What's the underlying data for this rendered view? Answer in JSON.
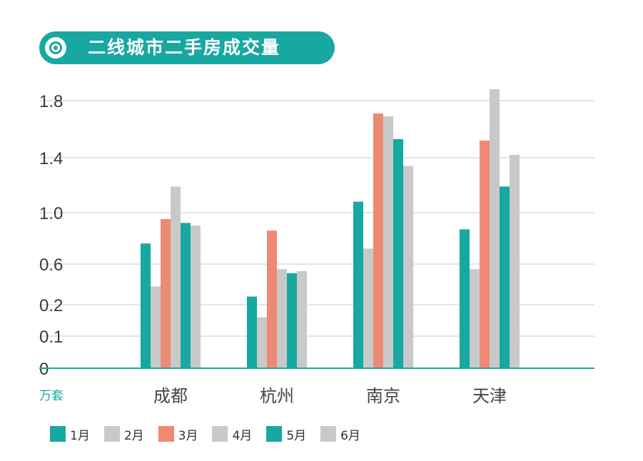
{
  "header": {
    "title": "二线城市二手房成交量"
  },
  "colors": {
    "teal": "#17a8a1",
    "gray": "#c9c9ca",
    "salmon": "#ee8a73",
    "grid": "#c8c8c8",
    "axis": "#17a8a1"
  },
  "legend": [
    {
      "label": "1月",
      "color": "#17a8a1"
    },
    {
      "label": "2月",
      "color": "#c9c9ca"
    },
    {
      "label": "3月",
      "color": "#ee8a73"
    },
    {
      "label": "4月",
      "color": "#c9c9ca"
    },
    {
      "label": "5月",
      "color": "#17a8a1"
    },
    {
      "label": "6月",
      "color": "#c9c9ca"
    }
  ],
  "chart_data": {
    "type": "bar",
    "title": "二线城市二手房成交量",
    "ylabel": "万套",
    "xlabel": "",
    "categories": [
      "成都",
      "杭州",
      "南京",
      "天津"
    ],
    "y_ticks": [
      "0",
      "0.1",
      "0.2",
      "0.6",
      "1.0",
      "1.4",
      "1.8"
    ],
    "grid": true,
    "series": [
      {
        "name": "1月",
        "color": "#17a8a1",
        "values": [
          0.76,
          0.28,
          1.08,
          0.87
        ]
      },
      {
        "name": "2月",
        "color": "#c9c9ca",
        "values": [
          0.38,
          0.16,
          0.72,
          0.55
        ]
      },
      {
        "name": "3月",
        "color": "#ee8a73",
        "values": [
          0.95,
          0.86,
          1.71,
          1.52
        ]
      },
      {
        "name": "4月",
        "color": "#c9c9ca",
        "values": [
          1.19,
          0.55,
          1.69,
          1.88
        ]
      },
      {
        "name": "5月",
        "color": "#17a8a1",
        "values": [
          0.92,
          0.51,
          1.53,
          1.19
        ]
      },
      {
        "name": "6月",
        "color": "#c9c9ca",
        "values": [
          0.9,
          0.53,
          1.34,
          1.42
        ]
      }
    ]
  }
}
